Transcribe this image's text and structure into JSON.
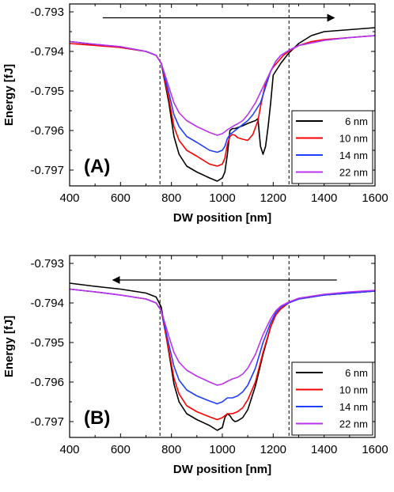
{
  "chart_data": [
    {
      "type": "line",
      "panel_label": "(A)",
      "xlabel": "DW position [nm]",
      "ylabel": "Energy [fJ]",
      "xlim": [
        400,
        1600
      ],
      "ylim": [
        -0.7974,
        -0.7928
      ],
      "xticks": [
        400,
        600,
        800,
        1000,
        1200,
        1400,
        1600
      ],
      "yticks": [
        -0.793,
        -0.794,
        -0.795,
        -0.796,
        -0.797
      ],
      "ytick_labels": [
        "-0.793",
        "-0.794",
        "-0.795",
        "-0.796",
        "-0.797"
      ],
      "vlines": [
        755,
        1262
      ],
      "arrow": {
        "from_x": 530,
        "to_x": 1440,
        "y": -0.79315,
        "direction": "right"
      },
      "legend_position": "bottom-right",
      "series": [
        {
          "name": "6 nm",
          "color": "#000000",
          "x": [
            400,
            500,
            600,
            700,
            740,
            760,
            790,
            810,
            830,
            860,
            900,
            950,
            980,
            1000,
            1010,
            1020,
            1030,
            1040,
            1050,
            1080,
            1100,
            1130,
            1140,
            1145,
            1150,
            1160,
            1170,
            1180,
            1190,
            1200,
            1230,
            1260,
            1300,
            1350,
            1400,
            1500,
            1600
          ],
          "y": [
            -0.79375,
            -0.79383,
            -0.7939,
            -0.794,
            -0.7941,
            -0.7943,
            -0.7953,
            -0.79615,
            -0.7966,
            -0.7969,
            -0.79705,
            -0.7972,
            -0.79728,
            -0.7972,
            -0.79705,
            -0.7966,
            -0.796,
            -0.79595,
            -0.79595,
            -0.79588,
            -0.79582,
            -0.79575,
            -0.7957,
            -0.79605,
            -0.7964,
            -0.7966,
            -0.7964,
            -0.7959,
            -0.7953,
            -0.7946,
            -0.7943,
            -0.79405,
            -0.7938,
            -0.7936,
            -0.7935,
            -0.79345,
            -0.7934
          ]
        },
        {
          "name": "10 nm",
          "color": "#ff0000",
          "x": [
            400,
            500,
            600,
            700,
            740,
            760,
            790,
            810,
            830,
            860,
            900,
            950,
            980,
            1000,
            1010,
            1020,
            1030,
            1040,
            1050,
            1060,
            1080,
            1100,
            1120,
            1140,
            1150,
            1170,
            1190,
            1200,
            1220,
            1240,
            1260,
            1300,
            1350,
            1400,
            1500,
            1600
          ],
          "y": [
            -0.7938,
            -0.79385,
            -0.7939,
            -0.794,
            -0.7941,
            -0.7943,
            -0.7952,
            -0.7959,
            -0.79625,
            -0.7965,
            -0.79665,
            -0.79685,
            -0.7969,
            -0.79685,
            -0.7967,
            -0.79635,
            -0.79615,
            -0.7961,
            -0.79612,
            -0.79618,
            -0.79622,
            -0.79625,
            -0.7961,
            -0.79575,
            -0.7954,
            -0.7948,
            -0.7945,
            -0.7944,
            -0.79425,
            -0.7941,
            -0.794,
            -0.79385,
            -0.79375,
            -0.7937,
            -0.79365,
            -0.7936
          ]
        },
        {
          "name": "14 nm",
          "color": "#1f3fff",
          "x": [
            400,
            500,
            600,
            700,
            740,
            760,
            790,
            810,
            830,
            860,
            900,
            950,
            980,
            1000,
            1010,
            1020,
            1030,
            1040,
            1060,
            1080,
            1100,
            1120,
            1150,
            1170,
            1190,
            1210,
            1230,
            1260,
            1300,
            1400,
            1500,
            1600
          ],
          "y": [
            -0.79375,
            -0.79382,
            -0.79388,
            -0.794,
            -0.7941,
            -0.7943,
            -0.79505,
            -0.7956,
            -0.7959,
            -0.79615,
            -0.7963,
            -0.7965,
            -0.79655,
            -0.7965,
            -0.7964,
            -0.7962,
            -0.7961,
            -0.79605,
            -0.79595,
            -0.79585,
            -0.79575,
            -0.7956,
            -0.7953,
            -0.7949,
            -0.7945,
            -0.79425,
            -0.7941,
            -0.79398,
            -0.79385,
            -0.79372,
            -0.79365,
            -0.7936
          ]
        },
        {
          "name": "22 nm",
          "color": "#bb33ee",
          "x": [
            400,
            500,
            600,
            700,
            740,
            760,
            790,
            810,
            830,
            860,
            900,
            950,
            980,
            1000,
            1020,
            1040,
            1060,
            1080,
            1100,
            1130,
            1160,
            1190,
            1210,
            1230,
            1260,
            1300,
            1400,
            1500,
            1600
          ],
          "y": [
            -0.79375,
            -0.79382,
            -0.79388,
            -0.794,
            -0.7941,
            -0.7943,
            -0.7949,
            -0.7953,
            -0.79555,
            -0.79575,
            -0.7959,
            -0.79605,
            -0.79612,
            -0.79608,
            -0.79598,
            -0.7959,
            -0.79583,
            -0.79575,
            -0.7956,
            -0.7953,
            -0.7949,
            -0.7945,
            -0.79425,
            -0.7941,
            -0.79398,
            -0.79385,
            -0.79372,
            -0.79365,
            -0.7936
          ]
        }
      ]
    },
    {
      "type": "line",
      "panel_label": "(B)",
      "xlabel": "DW position [nm]",
      "ylabel": "Energy [fJ]",
      "xlim": [
        400,
        1600
      ],
      "ylim": [
        -0.7974,
        -0.7928
      ],
      "xticks": [
        400,
        600,
        800,
        1000,
        1200,
        1400,
        1600
      ],
      "yticks": [
        -0.793,
        -0.794,
        -0.795,
        -0.796,
        -0.797
      ],
      "ytick_labels": [
        "-0.793",
        "-0.794",
        "-0.795",
        "-0.796",
        "-0.797"
      ],
      "vlines": [
        755,
        1262
      ],
      "arrow": {
        "from_x": 1450,
        "to_x": 570,
        "y": -0.79342,
        "direction": "left"
      },
      "legend_position": "bottom-right",
      "series": [
        {
          "name": "6 nm",
          "color": "#000000",
          "x": [
            400,
            500,
            600,
            700,
            740,
            760,
            790,
            810,
            830,
            860,
            900,
            950,
            980,
            1000,
            1010,
            1020,
            1030,
            1040,
            1050,
            1060,
            1080,
            1100,
            1130,
            1160,
            1190,
            1210,
            1230,
            1260,
            1300,
            1400,
            1500,
            1600
          ],
          "y": [
            -0.7935,
            -0.79358,
            -0.79365,
            -0.79375,
            -0.79385,
            -0.7941,
            -0.79525,
            -0.79605,
            -0.7965,
            -0.7968,
            -0.79695,
            -0.7971,
            -0.79722,
            -0.79715,
            -0.7969,
            -0.7968,
            -0.79685,
            -0.79695,
            -0.797,
            -0.79698,
            -0.7969,
            -0.7967,
            -0.7961,
            -0.7953,
            -0.7946,
            -0.7943,
            -0.79415,
            -0.794,
            -0.7939,
            -0.7938,
            -0.79375,
            -0.7937
          ]
        },
        {
          "name": "10 nm",
          "color": "#ff0000",
          "x": [
            400,
            500,
            600,
            700,
            740,
            760,
            790,
            810,
            830,
            860,
            900,
            950,
            980,
            1000,
            1020,
            1040,
            1060,
            1080,
            1100,
            1130,
            1160,
            1190,
            1210,
            1230,
            1260,
            1300,
            1400,
            1500,
            1600
          ],
          "y": [
            -0.79365,
            -0.79372,
            -0.7938,
            -0.7939,
            -0.794,
            -0.7942,
            -0.7952,
            -0.7959,
            -0.7963,
            -0.7966,
            -0.79675,
            -0.79688,
            -0.79695,
            -0.7969,
            -0.7968,
            -0.7968,
            -0.79675,
            -0.79665,
            -0.79645,
            -0.796,
            -0.79525,
            -0.7946,
            -0.7943,
            -0.79415,
            -0.794,
            -0.7939,
            -0.7938,
            -0.79375,
            -0.7937
          ]
        },
        {
          "name": "14 nm",
          "color": "#1f3fff",
          "x": [
            400,
            500,
            600,
            700,
            740,
            760,
            790,
            810,
            830,
            860,
            900,
            950,
            980,
            1000,
            1020,
            1040,
            1060,
            1080,
            1100,
            1130,
            1160,
            1190,
            1210,
            1230,
            1260,
            1300,
            1400,
            1500,
            1600
          ],
          "y": [
            -0.79365,
            -0.79372,
            -0.7938,
            -0.7939,
            -0.794,
            -0.7942,
            -0.79505,
            -0.7956,
            -0.79595,
            -0.7962,
            -0.79635,
            -0.79648,
            -0.79655,
            -0.7965,
            -0.7964,
            -0.7964,
            -0.79635,
            -0.79625,
            -0.79608,
            -0.79565,
            -0.795,
            -0.7945,
            -0.79425,
            -0.7941,
            -0.794,
            -0.7939,
            -0.7938,
            -0.79375,
            -0.7937
          ]
        },
        {
          "name": "22 nm",
          "color": "#bb33ee",
          "x": [
            400,
            500,
            600,
            700,
            740,
            760,
            790,
            810,
            830,
            860,
            900,
            950,
            980,
            1000,
            1020,
            1040,
            1060,
            1080,
            1100,
            1130,
            1160,
            1190,
            1210,
            1230,
            1260,
            1300,
            1400,
            1500,
            1600
          ],
          "y": [
            -0.79365,
            -0.79372,
            -0.7938,
            -0.7939,
            -0.794,
            -0.7942,
            -0.79485,
            -0.79525,
            -0.7955,
            -0.7957,
            -0.79585,
            -0.796,
            -0.79608,
            -0.79605,
            -0.79598,
            -0.79592,
            -0.79588,
            -0.7958,
            -0.79565,
            -0.7953,
            -0.7948,
            -0.7944,
            -0.7942,
            -0.79408,
            -0.79398,
            -0.79388,
            -0.79378,
            -0.79372,
            -0.79368
          ]
        }
      ]
    }
  ]
}
